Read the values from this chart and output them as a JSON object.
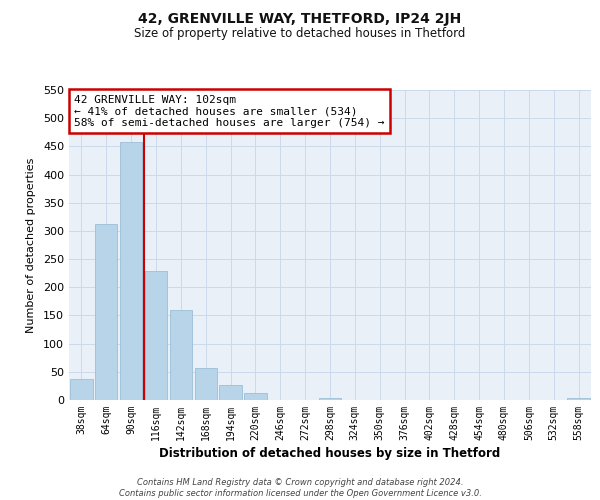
{
  "title": "42, GRENVILLE WAY, THETFORD, IP24 2JH",
  "subtitle": "Size of property relative to detached houses in Thetford",
  "xlabel": "Distribution of detached houses by size in Thetford",
  "ylabel": "Number of detached properties",
  "bar_labels": [
    "38sqm",
    "64sqm",
    "90sqm",
    "116sqm",
    "142sqm",
    "168sqm",
    "194sqm",
    "220sqm",
    "246sqm",
    "272sqm",
    "298sqm",
    "324sqm",
    "350sqm",
    "376sqm",
    "402sqm",
    "428sqm",
    "454sqm",
    "480sqm",
    "506sqm",
    "532sqm",
    "558sqm"
  ],
  "bar_values": [
    38,
    312,
    458,
    228,
    160,
    56,
    27,
    12,
    0,
    0,
    4,
    0,
    0,
    0,
    0,
    0,
    0,
    0,
    0,
    0,
    4
  ],
  "bar_color": "#b8d4e8",
  "bar_edge_color": "#9bbfd8",
  "grid_color": "#ccd9ea",
  "background_color": "#eaf0f8",
  "red_line_x": 2.5,
  "annotation_line1": "42 GRENVILLE WAY: 102sqm",
  "annotation_line2": "← 41% of detached houses are smaller (534)",
  "annotation_line3": "58% of semi-detached houses are larger (754) →",
  "annotation_box_color": "#ffffff",
  "annotation_box_edge": "#cc0000",
  "ylim": [
    0,
    550
  ],
  "yticks": [
    0,
    50,
    100,
    150,
    200,
    250,
    300,
    350,
    400,
    450,
    500,
    550
  ],
  "footer_line1": "Contains HM Land Registry data © Crown copyright and database right 2024.",
  "footer_line2": "Contains public sector information licensed under the Open Government Licence v3.0."
}
